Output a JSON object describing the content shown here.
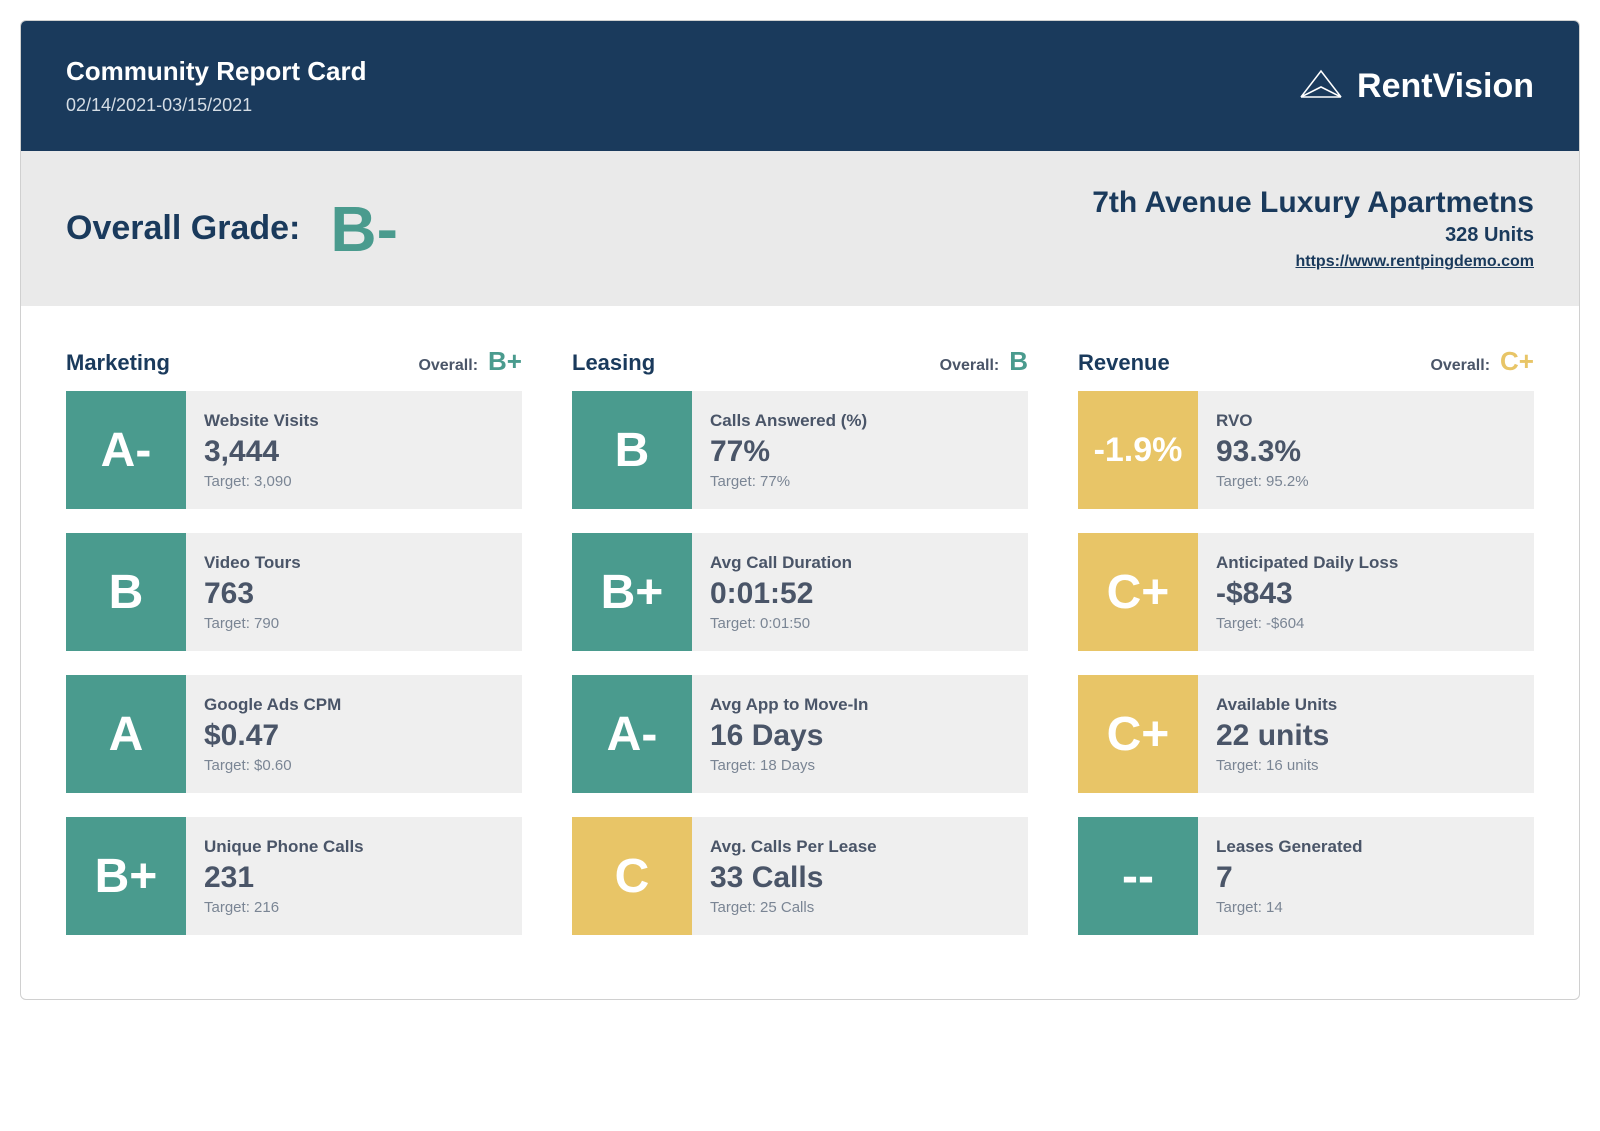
{
  "header": {
    "title": "Community Report Card",
    "date_range": "02/14/2021-03/15/2021",
    "brand_name": "RentVision"
  },
  "summary": {
    "grade_label": "Overall Grade:",
    "grade_value": "B-",
    "property_name": "7th Avenue Luxury Apartmetns",
    "unit_count": "328 Units",
    "property_url": "https://www.rentpingdemo.com"
  },
  "colors": {
    "header_bg": "#1a3a5c",
    "summary_bg": "#eaeaea",
    "teal": "#4a9b8e",
    "yellow": "#e8c567",
    "text_dark": "#4a5568",
    "card_bg": "#efefef"
  },
  "columns": [
    {
      "title": "Marketing",
      "overall_label": "Overall:",
      "overall_grade": "B+",
      "overall_color": "teal",
      "metrics": [
        {
          "grade": "A-",
          "grade_bg": "teal",
          "label": "Website Visits",
          "value": "3,444",
          "target": "Target:  3,090"
        },
        {
          "grade": "B",
          "grade_bg": "teal",
          "label": "Video Tours",
          "value": "763",
          "target": "Target:  790"
        },
        {
          "grade": "A",
          "grade_bg": "teal",
          "label": "Google Ads CPM",
          "value": "$0.47",
          "target": "Target:  $0.60"
        },
        {
          "grade": "B+",
          "grade_bg": "teal",
          "label": "Unique Phone Calls",
          "value": "231",
          "target": "Target:  216"
        }
      ]
    },
    {
      "title": "Leasing",
      "overall_label": "Overall:",
      "overall_grade": "B",
      "overall_color": "teal",
      "metrics": [
        {
          "grade": "B",
          "grade_bg": "teal",
          "label": "Calls Answered (%)",
          "value": "77%",
          "target": "Target:  77%"
        },
        {
          "grade": "B+",
          "grade_bg": "teal",
          "label": "Avg Call Duration",
          "value": "0:01:52",
          "target": "Target:  0:01:50"
        },
        {
          "grade": "A-",
          "grade_bg": "teal",
          "label": "Avg App to Move-In",
          "value": "16 Days",
          "target": "Target:  18 Days"
        },
        {
          "grade": "C",
          "grade_bg": "yellow",
          "label": "Avg. Calls Per Lease",
          "value": "33 Calls",
          "target": "Target:  25 Calls"
        }
      ]
    },
    {
      "title": "Revenue",
      "overall_label": "Overall:",
      "overall_grade": "C+",
      "overall_color": "yellow",
      "metrics": [
        {
          "grade": "-1.9%",
          "grade_bg": "yellow",
          "small": true,
          "label": "RVO",
          "value": "93.3%",
          "target": "Target:  95.2%"
        },
        {
          "grade": "C+",
          "grade_bg": "yellow",
          "label": "Anticipated Daily Loss",
          "value": "-$843",
          "target": "Target:  -$604"
        },
        {
          "grade": "C+",
          "grade_bg": "yellow",
          "label": "Available Units",
          "value": "22 units",
          "target": "Target:  16 units"
        },
        {
          "grade": "--",
          "grade_bg": "teal",
          "label": "Leases Generated",
          "value": "7",
          "target": "Target:  14"
        }
      ]
    }
  ]
}
